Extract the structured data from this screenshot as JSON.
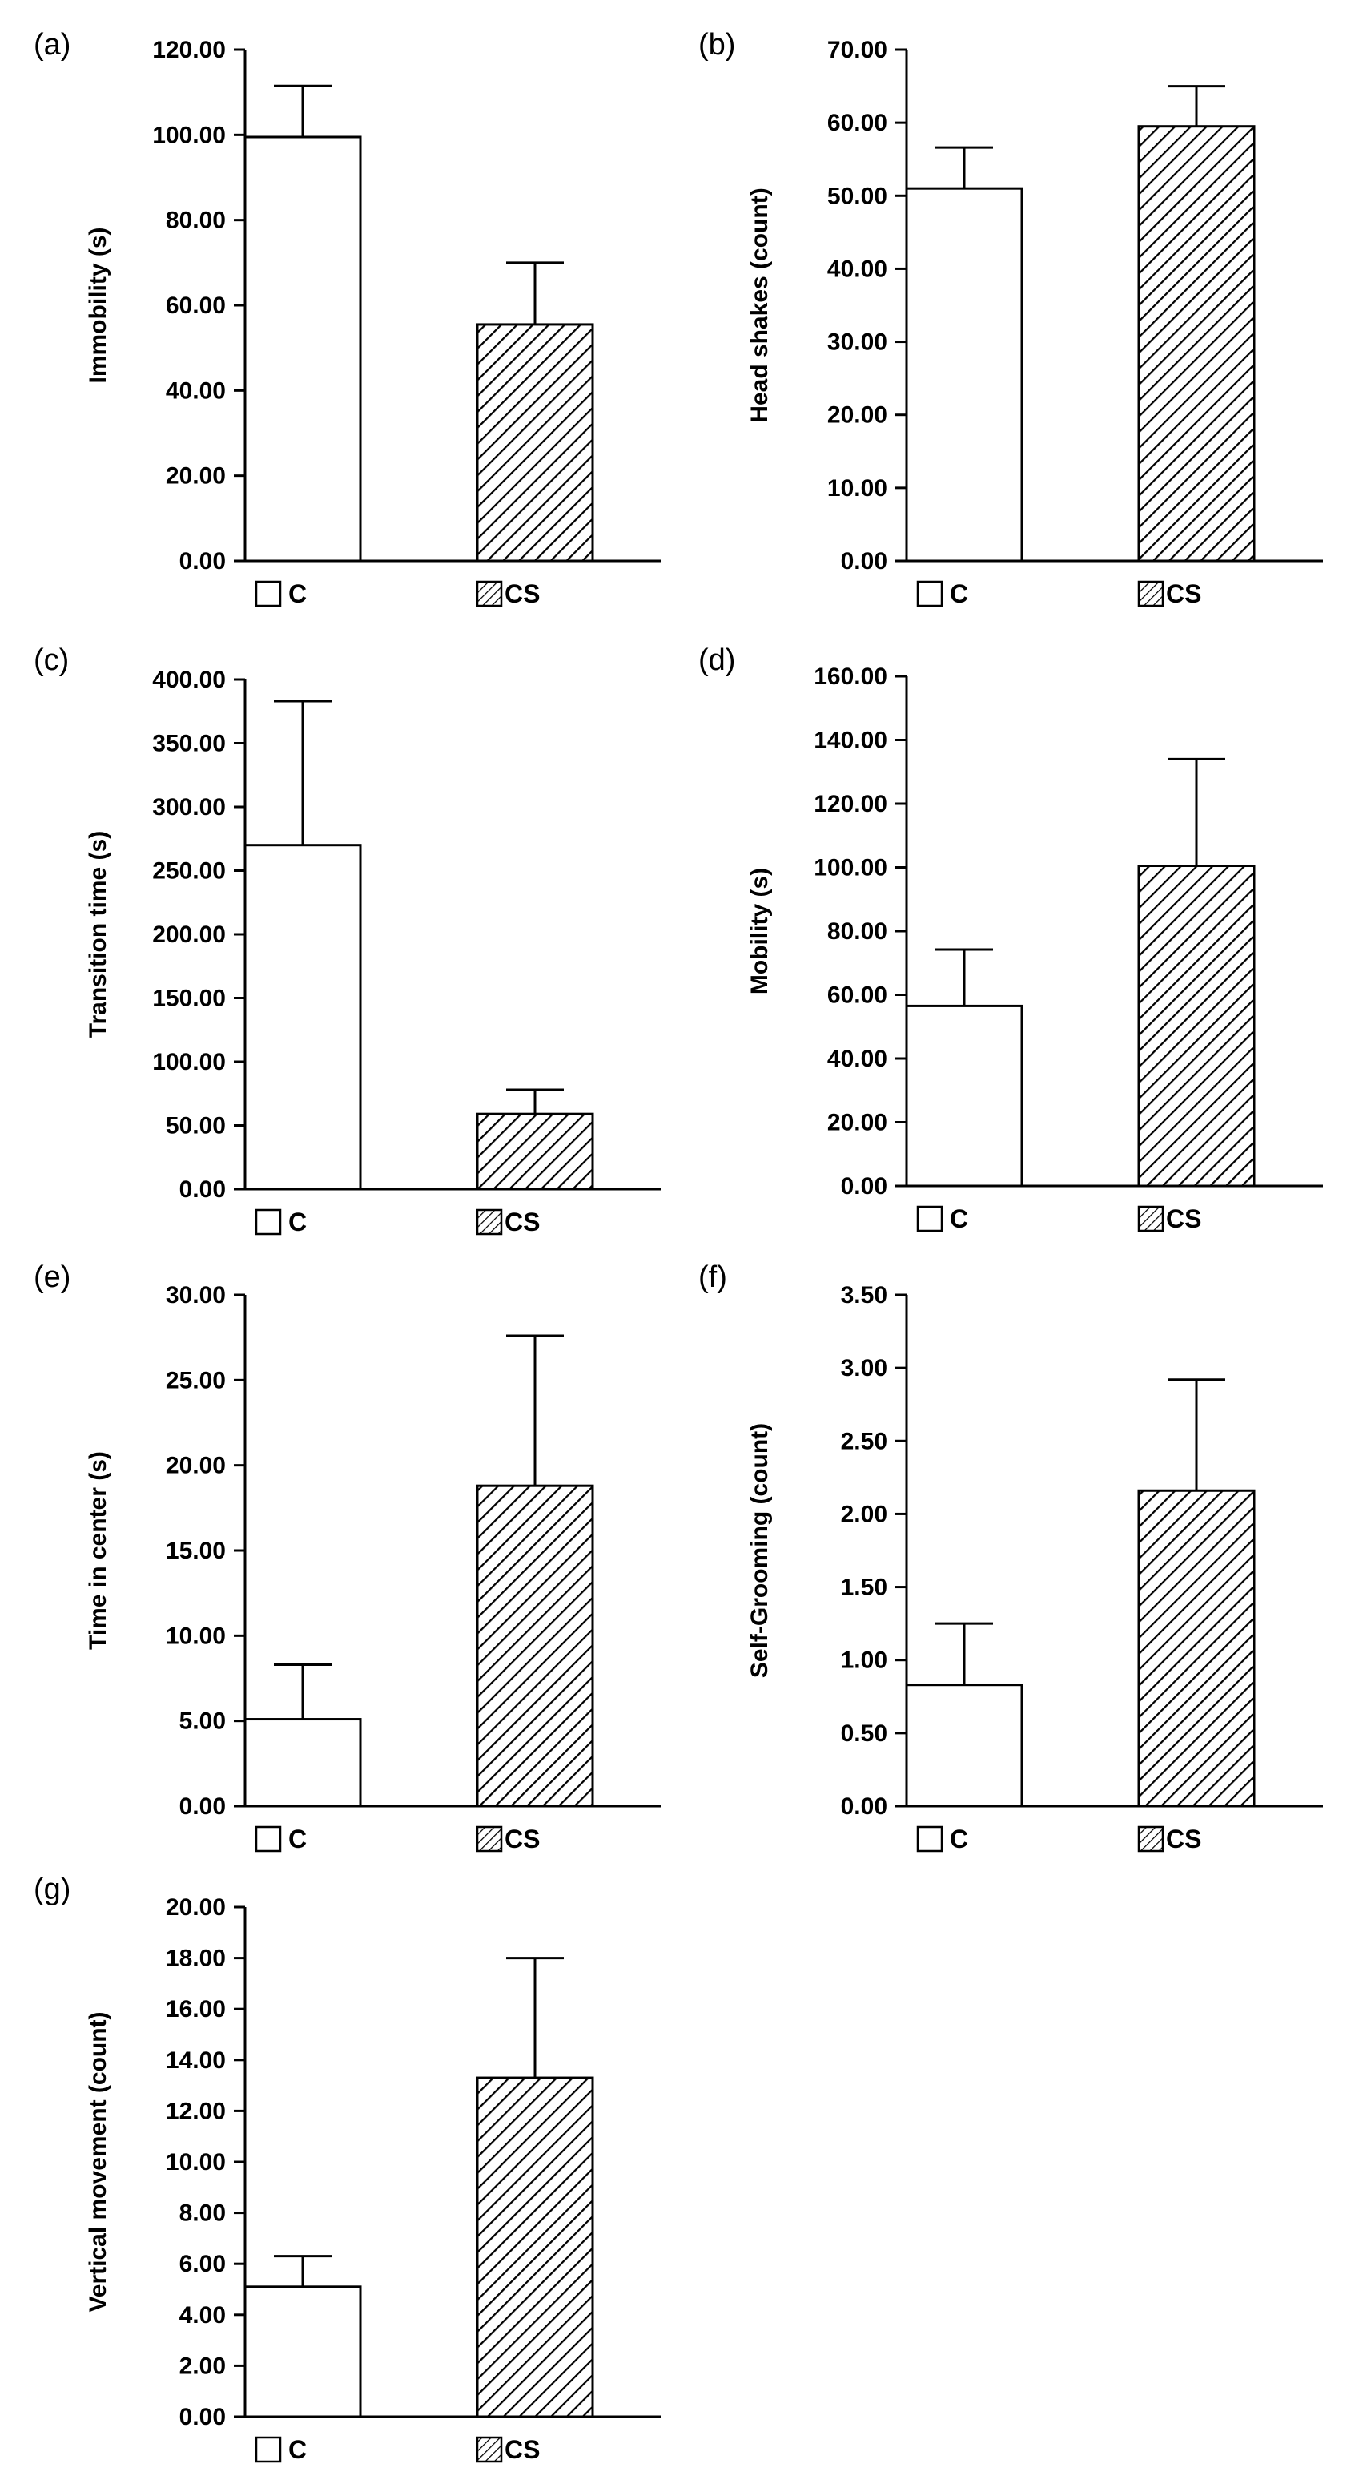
{
  "figure": {
    "legend": {
      "control_label": "C",
      "treatment_label": "CS"
    },
    "colors": {
      "axis": "#000000",
      "bar_fill": "#ffffff",
      "hatch": "#000000",
      "background": "#ffffff"
    }
  },
  "chart_data": [
    {
      "panel": "(a)",
      "type": "bar",
      "categories": [
        "C",
        "CS"
      ],
      "values": [
        99.5,
        55.5
      ],
      "errors": [
        12.0,
        14.5
      ],
      "ylabel": "Immobility (s)",
      "xlabel": "",
      "ylim": [
        0,
        120
      ],
      "yticks": [
        "0.00",
        "20.00",
        "40.00",
        "60.00",
        "80.00",
        "100.00",
        "120.00"
      ],
      "grid": false
    },
    {
      "panel": "(b)",
      "type": "bar",
      "categories": [
        "C",
        "CS"
      ],
      "values": [
        51.0,
        59.5
      ],
      "errors": [
        5.6,
        5.5
      ],
      "ylabel": "Head shakes (count)",
      "xlabel": "",
      "ylim": [
        0,
        70
      ],
      "yticks": [
        "0.00",
        "10.00",
        "20.00",
        "30.00",
        "40.00",
        "50.00",
        "60.00",
        "70.00"
      ],
      "grid": false
    },
    {
      "panel": "(c)",
      "type": "bar",
      "categories": [
        "C",
        "CS"
      ],
      "values": [
        270,
        59
      ],
      "errors": [
        113,
        19
      ],
      "ylabel": "Transition time (s)",
      "xlabel": "",
      "ylim": [
        0,
        400
      ],
      "yticks": [
        "0.00",
        "50.00",
        "100.00",
        "150.00",
        "200.00",
        "250.00",
        "300.00",
        "350.00",
        "400.00"
      ],
      "grid": false
    },
    {
      "panel": "(d)",
      "type": "bar",
      "categories": [
        "C",
        "CS"
      ],
      "values": [
        56.5,
        100.5
      ],
      "errors": [
        17.7,
        33.5
      ],
      "ylabel": "Mobility (s)",
      "xlabel": "",
      "ylim": [
        0,
        160
      ],
      "yticks": [
        "0.00",
        "20.00",
        "40.00",
        "60.00",
        "80.00",
        "100.00",
        "120.00",
        "140.00",
        "160.00"
      ],
      "grid": false
    },
    {
      "panel": "(e)",
      "type": "bar",
      "categories": [
        "C",
        "CS"
      ],
      "values": [
        5.1,
        18.8
      ],
      "errors": [
        3.2,
        8.8
      ],
      "ylabel": "Time in center (s)",
      "xlabel": "",
      "ylim": [
        0,
        30
      ],
      "yticks": [
        "0.00",
        "5.00",
        "10.00",
        "15.00",
        "20.00",
        "25.00",
        "30.00"
      ],
      "grid": false
    },
    {
      "panel": "(f)",
      "type": "bar",
      "categories": [
        "C",
        "CS"
      ],
      "values": [
        0.83,
        2.16
      ],
      "errors": [
        0.42,
        0.76
      ],
      "ylabel": "Self-Grooming (count)",
      "xlabel": "",
      "ylim": [
        0,
        3.5
      ],
      "yticks": [
        "0.00",
        "0.50",
        "1.00",
        "1.50",
        "2.00",
        "2.50",
        "3.00",
        "3.50"
      ],
      "grid": false
    },
    {
      "panel": "(g)",
      "type": "bar",
      "categories": [
        "C",
        "CS"
      ],
      "values": [
        5.1,
        13.3
      ],
      "errors": [
        1.2,
        4.7
      ],
      "ylabel": "Vertical movement (count)",
      "xlabel": "",
      "ylim": [
        0,
        20
      ],
      "yticks": [
        "0.00",
        "2.00",
        "4.00",
        "6.00",
        "8.00",
        "10.00",
        "12.00",
        "14.00",
        "16.00",
        "18.00",
        "20.00"
      ],
      "grid": false
    }
  ]
}
